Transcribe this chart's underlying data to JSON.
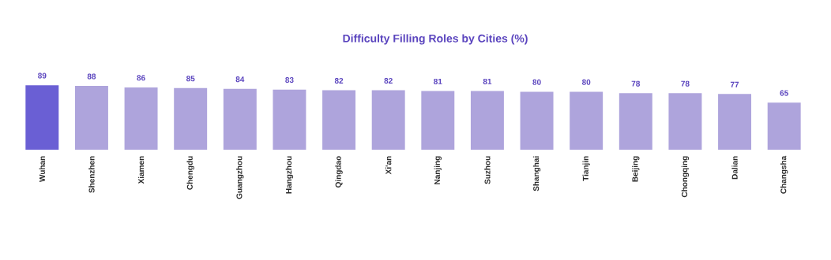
{
  "chart_data": {
    "type": "bar",
    "title": "Difficulty Filling Roles by Cities (%)",
    "categories": [
      "Wuhan",
      "Shenzhen",
      "Xiamen",
      "Chengdu",
      "Guangzhou",
      "Hangzhou",
      "Qingdao",
      "Xi'an",
      "Nanjing",
      "Suzhou",
      "Shanghai",
      "Tianjin",
      "Beijing",
      "Chongqing",
      "Dalian",
      "Changsha"
    ],
    "values": [
      89,
      88,
      86,
      85,
      84,
      83,
      82,
      82,
      81,
      81,
      80,
      80,
      78,
      78,
      77,
      65
    ],
    "colors": [
      "#6a5fd4",
      "#aea4dc",
      "#aea4dc",
      "#aea4dc",
      "#aea4dc",
      "#aea4dc",
      "#aea4dc",
      "#aea4dc",
      "#aea4dc",
      "#aea4dc",
      "#aea4dc",
      "#aea4dc",
      "#aea4dc",
      "#aea4dc",
      "#aea4dc",
      "#aea4dc"
    ],
    "data_labels": true
  }
}
